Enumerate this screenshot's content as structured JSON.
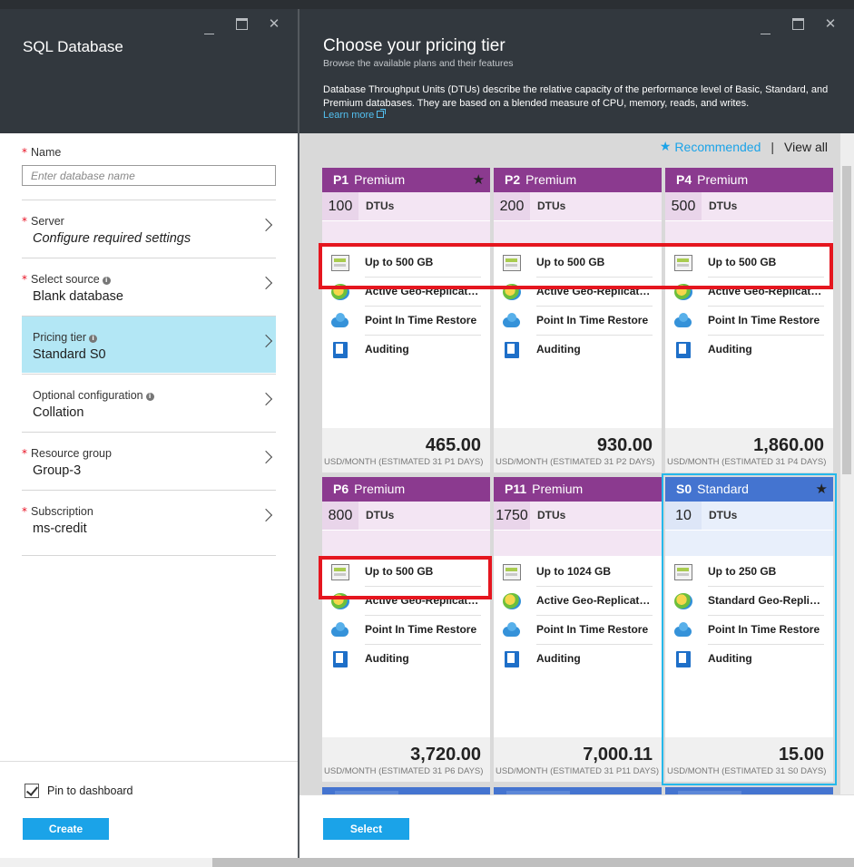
{
  "left_blade": {
    "title": "SQL Database",
    "name_field": {
      "label": "Name",
      "placeholder": "Enter database name",
      "value": ""
    },
    "rows": [
      {
        "label": "Server",
        "value": "Configure required settings",
        "required": true
      },
      {
        "label": "Select source",
        "value": "Blank database",
        "required": true,
        "info": true
      },
      {
        "label": "Pricing tier",
        "value": "Standard S0",
        "required": false,
        "info": true,
        "selected": true
      },
      {
        "label": "Optional configuration",
        "value": "Collation",
        "required": false,
        "info": true
      },
      {
        "label": "Resource group",
        "value": "Group-3",
        "required": true
      },
      {
        "label": "Subscription",
        "value": "ms-credit",
        "required": true
      }
    ],
    "pin_label": "Pin to dashboard",
    "pin_checked": true,
    "create_label": "Create"
  },
  "right_blade": {
    "title": "Choose your pricing tier",
    "subtitle": "Browse the available plans and their features",
    "description": "Database Throughput Units (DTUs) describe the relative capacity of the performance level of Basic, Standard, and Premium databases. They are based on a blended measure of CPU, memory, reads, and writes.",
    "learn_more": "Learn more",
    "filter": {
      "recommended": "Recommended",
      "separator": "|",
      "view_all": "View all"
    },
    "select_label": "Select",
    "dtu_unit": "DTUs",
    "cards": [
      {
        "code": "P1",
        "tier": "Premium",
        "dtus": "100",
        "starred": true,
        "features": [
          "Up to 500 GB",
          "Active Geo-Replication",
          "Point In Time Restore",
          "Auditing"
        ],
        "price": "465.00",
        "estimate": "USD/MONTH (ESTIMATED 31 P1 DAYS)"
      },
      {
        "code": "P2",
        "tier": "Premium",
        "dtus": "200",
        "starred": false,
        "features": [
          "Up to 500 GB",
          "Active Geo-Replication",
          "Point In Time Restore",
          "Auditing"
        ],
        "price": "930.00",
        "estimate": "USD/MONTH (ESTIMATED 31 P2 DAYS)"
      },
      {
        "code": "P4",
        "tier": "Premium",
        "dtus": "500",
        "starred": false,
        "features": [
          "Up to 500 GB",
          "Active Geo-Replication",
          "Point In Time Restore",
          "Auditing"
        ],
        "price": "1,860.00",
        "estimate": "USD/MONTH (ESTIMATED 31 P4 DAYS)"
      },
      {
        "code": "P6",
        "tier": "Premium",
        "dtus": "800",
        "starred": false,
        "features": [
          "Up to 500 GB",
          "Active Geo-Replication",
          "Point In Time Restore",
          "Auditing"
        ],
        "price": "3,720.00",
        "estimate": "USD/MONTH (ESTIMATED 31 P6 DAYS)"
      },
      {
        "code": "P11",
        "tier": "Premium",
        "dtus": "1750",
        "starred": false,
        "features": [
          "Up to 1024 GB",
          "Active Geo-Replication",
          "Point In Time Restore",
          "Auditing"
        ],
        "price": "7,000.11",
        "estimate": "USD/MONTH (ESTIMATED 31 P11 DAYS)"
      },
      {
        "code": "S0",
        "tier": "Standard",
        "dtus": "10",
        "starred": true,
        "selected": true,
        "features": [
          "Up to 250 GB",
          "Standard Geo-Replication",
          "Point In Time Restore",
          "Auditing"
        ],
        "price": "15.00",
        "estimate": "USD/MONTH (ESTIMATED 31 S0 DAYS)"
      }
    ]
  },
  "colors": {
    "premium": "#8b3a8f",
    "standard": "#4474d0",
    "accent": "#1ba3e8",
    "highlight": "#e5161f",
    "selected_row": "#b3e7f5"
  }
}
